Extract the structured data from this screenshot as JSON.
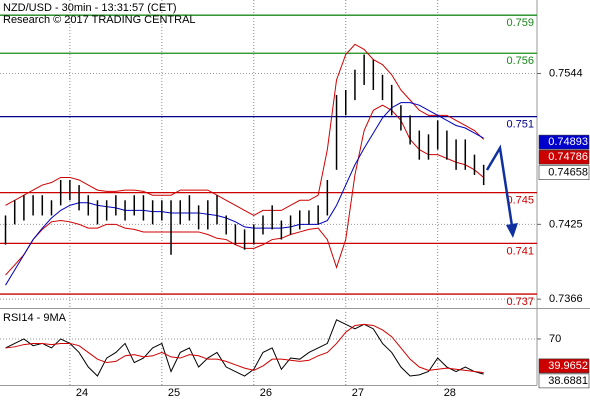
{
  "chart_data": [
    {
      "type": "ohlc",
      "title": "NZD/USD - 30min - 13:31:57 (CET)",
      "subtitle": "Research © 2017 TRADING CENTRAL",
      "x": [
        23.3,
        23.4,
        23.5,
        23.6,
        23.7,
        23.8,
        23.9,
        24.0,
        24.1,
        24.2,
        24.3,
        24.4,
        24.5,
        24.6,
        24.7,
        24.8,
        24.9,
        25.0,
        25.1,
        25.2,
        25.3,
        25.4,
        25.5,
        25.6,
        25.7,
        25.8,
        25.9,
        26.0,
        26.1,
        26.2,
        26.3,
        26.4,
        26.5,
        26.6,
        26.7,
        26.8,
        26.9,
        27.0,
        27.1,
        27.2,
        27.3,
        27.4,
        27.5,
        27.6,
        27.7,
        27.8,
        27.9,
        28.0,
        28.1,
        28.2,
        28.3,
        28.4,
        28.5
      ],
      "high": [
        0.7432,
        0.7444,
        0.7448,
        0.7448,
        0.7448,
        0.7444,
        0.746,
        0.746,
        0.7456,
        0.7448,
        0.7444,
        0.7444,
        0.7448,
        0.7444,
        0.7448,
        0.7448,
        0.7444,
        0.7444,
        0.7444,
        0.7444,
        0.7448,
        0.744,
        0.7444,
        0.7448,
        0.7432,
        0.7425,
        0.7421,
        0.7425,
        0.7432,
        0.744,
        0.7428,
        0.7432,
        0.7436,
        0.7436,
        0.744,
        0.746,
        0.7527,
        0.7531,
        0.7547,
        0.7559,
        0.7555,
        0.7543,
        0.7535,
        0.7519,
        0.7511,
        0.7499,
        0.7496,
        0.7507,
        0.7499,
        0.7492,
        0.7492,
        0.748,
        0.7472
      ],
      "low": [
        0.7409,
        0.7425,
        0.7428,
        0.7432,
        0.7432,
        0.7432,
        0.744,
        0.7444,
        0.7436,
        0.7432,
        0.7425,
        0.7428,
        0.7432,
        0.7428,
        0.7432,
        0.7428,
        0.7425,
        0.7428,
        0.7401,
        0.7425,
        0.7428,
        0.7421,
        0.7421,
        0.7425,
        0.7417,
        0.7409,
        0.7405,
        0.7409,
        0.7417,
        0.7421,
        0.7413,
        0.7417,
        0.7421,
        0.7425,
        0.7425,
        0.7432,
        0.7468,
        0.7511,
        0.7523,
        0.7535,
        0.7531,
        0.7523,
        0.7511,
        0.7499,
        0.7488,
        0.7476,
        0.7476,
        0.7484,
        0.7476,
        0.7468,
        0.7468,
        0.7464,
        0.7456
      ],
      "bar_color": "#000000",
      "series": [
        {
          "color": "#d00000",
          "values": [
            0.744,
            0.7444,
            0.7448,
            0.7452,
            0.7456,
            0.7458,
            0.7462,
            0.7462,
            0.746,
            0.7456,
            0.7452,
            0.7451,
            0.7451,
            0.7452,
            0.7452,
            0.7451,
            0.7448,
            0.7448,
            0.7448,
            0.7452,
            0.7452,
            0.7452,
            0.7452,
            0.7448,
            0.7444,
            0.744,
            0.7436,
            0.7432,
            0.7436,
            0.7436,
            0.7436,
            0.744,
            0.7444,
            0.7444,
            0.7448,
            0.7484,
            0.7539,
            0.7559,
            0.7567,
            0.7563,
            0.7555,
            0.7551,
            0.7543,
            0.7531,
            0.7523,
            0.7515,
            0.7511,
            0.7511,
            0.7511,
            0.7507,
            0.7503,
            0.7499,
            0.7492
          ]
        },
        {
          "color": "#d00000",
          "values": [
            0.7385,
            0.7393,
            0.7401,
            0.7413,
            0.7421,
            0.7427,
            0.7428,
            0.7427,
            0.7425,
            0.7422,
            0.7422,
            0.7425,
            0.7425,
            0.7422,
            0.7421,
            0.7419,
            0.7419,
            0.7419,
            0.7419,
            0.7419,
            0.7419,
            0.7419,
            0.7417,
            0.7414,
            0.7413,
            0.7409,
            0.7406,
            0.7406,
            0.7409,
            0.7413,
            0.7414,
            0.7417,
            0.7419,
            0.7421,
            0.7422,
            0.7413,
            0.7391,
            0.7413,
            0.7464,
            0.7499,
            0.7515,
            0.7519,
            0.7515,
            0.7507,
            0.7492,
            0.7484,
            0.748,
            0.748,
            0.7477,
            0.7474,
            0.7472,
            0.7468,
            0.7462
          ]
        },
        {
          "color": "#0000c0",
          "values": [
            0.7377,
            0.7389,
            0.7401,
            0.7413,
            0.7422,
            0.743,
            0.7436,
            0.744,
            0.7442,
            0.7442,
            0.744,
            0.7439,
            0.7438,
            0.7436,
            0.7436,
            0.7436,
            0.7435,
            0.7435,
            0.7434,
            0.7434,
            0.7434,
            0.7434,
            0.7433,
            0.7432,
            0.743,
            0.7427,
            0.7423,
            0.7422,
            0.7422,
            0.7422,
            0.7422,
            0.7423,
            0.7425,
            0.7425,
            0.7425,
            0.7428,
            0.744,
            0.7456,
            0.7472,
            0.7485,
            0.7497,
            0.7509,
            0.7517,
            0.7521,
            0.7521,
            0.7519,
            0.7515,
            0.7511,
            0.7507,
            0.7503,
            0.7501,
            0.7497,
            0.7493
          ]
        }
      ],
      "xlim": [
        23.24,
        29.08
      ],
      "xticks": [
        24,
        25,
        26,
        27,
        28
      ],
      "ylim": [
        0.7359,
        0.7602
      ],
      "yticks": [
        0.7544,
        0.7425,
        0.7366
      ],
      "grid": true,
      "levels": [
        {
          "value": 0.759,
          "color": "#1a8a1a"
        },
        {
          "value": 0.756,
          "color": "#1a8a1a"
        },
        {
          "value": 0.751,
          "color": "#00008b"
        },
        {
          "value": 0.745,
          "color": "#cc0000"
        },
        {
          "value": 0.741,
          "color": "#cc0000"
        },
        {
          "value": 0.737,
          "color": "#cc0000"
        }
      ],
      "tags": [
        {
          "value": 0.74893,
          "color": "#0000cc"
        },
        {
          "value": 0.74786,
          "color": "#cc0000"
        },
        {
          "value": 0.74658,
          "color": "#ffffff"
        }
      ]
    },
    {
      "type": "line",
      "title": "RSI14 - 9MA",
      "x": [
        23.3,
        23.4,
        23.5,
        23.6,
        23.7,
        23.8,
        23.9,
        24.0,
        24.1,
        24.2,
        24.3,
        24.4,
        24.5,
        24.6,
        24.7,
        24.8,
        24.9,
        25.0,
        25.1,
        25.2,
        25.3,
        25.4,
        25.5,
        25.6,
        25.7,
        25.8,
        25.9,
        26.0,
        26.1,
        26.2,
        26.3,
        26.4,
        26.5,
        26.6,
        26.7,
        26.8,
        26.9,
        27.0,
        27.1,
        27.2,
        27.3,
        27.4,
        27.5,
        27.6,
        27.7,
        27.8,
        27.9,
        28.0,
        28.1,
        28.2,
        28.3,
        28.4,
        28.5
      ],
      "series": [
        {
          "color": "#000000",
          "values": [
            62,
            66,
            70,
            64,
            66,
            62,
            70,
            66,
            58,
            45,
            37,
            53,
            58,
            66,
            49,
            53,
            62,
            66,
            41,
            58,
            62,
            45,
            53,
            58,
            45,
            41,
            37,
            43,
            58,
            62,
            43,
            53,
            52,
            58,
            62,
            66,
            87,
            83,
            79,
            83,
            79,
            66,
            58,
            45,
            37,
            38,
            41,
            53,
            45,
            41,
            45,
            41,
            38.7
          ]
        },
        {
          "color": "#d00000",
          "values": [
            62,
            63,
            65,
            66,
            66,
            65,
            66,
            66,
            64,
            58,
            52,
            49,
            50,
            55,
            56,
            54,
            55,
            58,
            54,
            53,
            56,
            55,
            52,
            52,
            50,
            47,
            44,
            42,
            46,
            52,
            52,
            51,
            50,
            51,
            55,
            58,
            66,
            76,
            82,
            83,
            82,
            78,
            72,
            62,
            52,
            45,
            42,
            43,
            44,
            43,
            42,
            41,
            40
          ]
        }
      ],
      "xlim": [
        23.24,
        29.08
      ],
      "xticks": [
        24,
        25,
        26,
        27,
        28
      ],
      "ylim": [
        29,
        94
      ],
      "yticks": [
        70
      ],
      "grid": true,
      "tags": [
        {
          "value": 39.9652,
          "color": "#cc0000"
        },
        {
          "value": 38.6881,
          "color": "#ffffff"
        }
      ]
    }
  ]
}
